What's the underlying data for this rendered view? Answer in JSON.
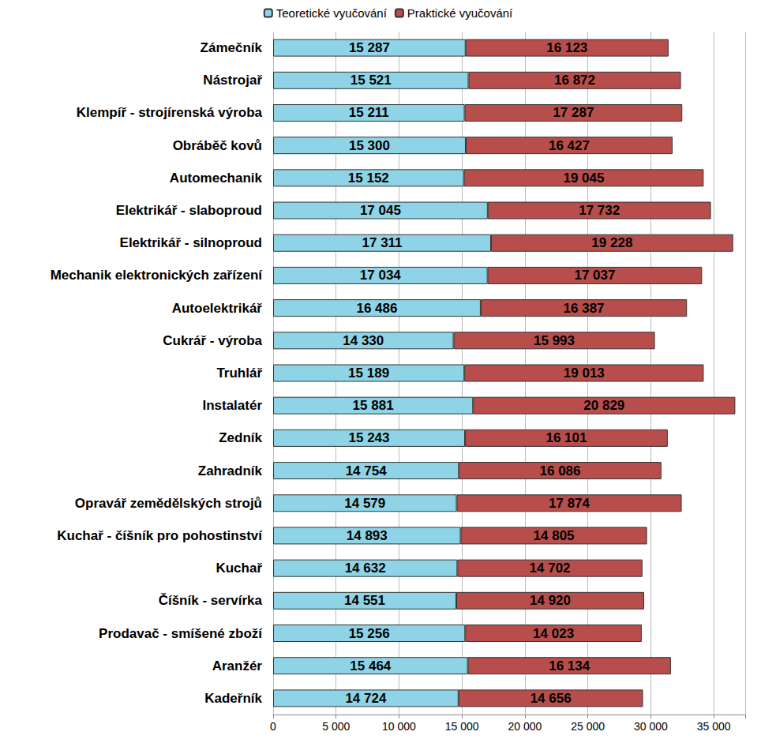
{
  "chart_data": {
    "type": "bar",
    "orientation": "horizontal",
    "stacked": true,
    "data_labels": true,
    "grid": true,
    "legend": "top",
    "categories": [
      "Zámečník",
      "Nástrojař",
      "Klempíř - strojírenská výroba",
      "Obráběč kovů",
      "Automechanik",
      "Elektrikář - slaboproud",
      "Elektrikář - silnoproud",
      "Mechanik elektronických zařízení",
      "Autoelektrikář",
      "Cukrář - výroba",
      "Truhlář",
      "Instalatér",
      "Zedník",
      "Zahradník",
      "Opravář zemědělských strojů",
      "Kuchař - číšník pro pohostinství",
      "Kuchař",
      "Číšník - servírka",
      "Prodavač - smíšené zboží",
      "Aranžér",
      "Kadeřník"
    ],
    "series": [
      {
        "name": "Teoretické vyučování",
        "color": "#8ed4e6",
        "values": [
          15287,
          15521,
          15211,
          15300,
          15152,
          17045,
          17311,
          17034,
          16486,
          14330,
          15189,
          15881,
          15243,
          14754,
          14579,
          14893,
          14632,
          14551,
          15256,
          15464,
          14724
        ],
        "value_labels": [
          "15 287",
          "15 521",
          "15 211",
          "15 300",
          "15 152",
          "17 045",
          "17 311",
          "17 034",
          "16 486",
          "14 330",
          "15 189",
          "15 881",
          "15 243",
          "14 754",
          "14 579",
          "14 893",
          "14 632",
          "14 551",
          "15 256",
          "15 464",
          "14 724"
        ]
      },
      {
        "name": "Praktické vyučování",
        "color": "#b84e4b",
        "values": [
          16123,
          16872,
          17287,
          16427,
          19045,
          17732,
          19228,
          17037,
          16387,
          15993,
          19013,
          20829,
          16101,
          16086,
          17874,
          14805,
          14702,
          14920,
          14023,
          16134,
          14656
        ],
        "value_labels": [
          "16 123",
          "16 872",
          "17 287",
          "16 427",
          "19 045",
          "17 732",
          "19 228",
          "17 037",
          "16 387",
          "15 993",
          "19 013",
          "20 829",
          "16 101",
          "16 086",
          "17 874",
          "14 805",
          "14 702",
          "14 920",
          "14 023",
          "16 134",
          "14 656"
        ]
      }
    ],
    "xlim": [
      0,
      37500
    ],
    "xticks": [
      0,
      {
        "value": 5000,
        "label": "5 000"
      },
      {
        "value": 10000,
        "label": "10 000"
      },
      {
        "value": 15000,
        "label": "15 000"
      },
      {
        "value": 20000,
        "label": "20 000"
      },
      {
        "value": 25000,
        "label": "25 000"
      },
      {
        "value": 30000,
        "label": "30 000"
      },
      {
        "value": 35000,
        "label": "35 000"
      }
    ]
  }
}
